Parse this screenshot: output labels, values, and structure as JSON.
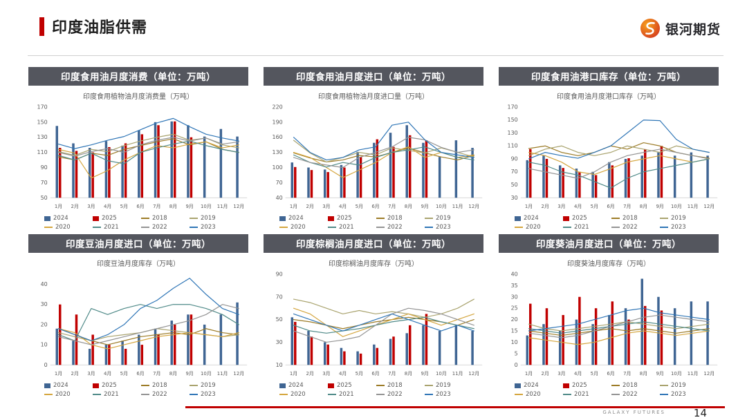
{
  "slide": {
    "title": "印度油脂供需",
    "logo_text": "银河期货",
    "footer_brand": "GALAXY FUTURES",
    "page_number": "14"
  },
  "colors": {
    "accent_red": "#c00000",
    "panel_header_bg": "#54565e"
  },
  "legend": {
    "items": [
      {
        "label": "2024",
        "type": "bar",
        "color": "#3f6593"
      },
      {
        "label": "2025",
        "type": "bar",
        "color": "#c00000"
      },
      {
        "label": "2018",
        "type": "line",
        "color": "#9c7b26"
      },
      {
        "label": "2019",
        "type": "line",
        "color": "#a9a36e"
      },
      {
        "label": "2020",
        "type": "line",
        "color": "#d4a53d"
      },
      {
        "label": "2021",
        "type": "line",
        "color": "#4f8a88"
      },
      {
        "label": "2022",
        "type": "line",
        "color": "#939393"
      },
      {
        "label": "2023",
        "type": "line",
        "color": "#2e75b6"
      }
    ]
  },
  "panels": [
    {
      "header": "印度食用油月度消费（单位：万吨）"
    },
    {
      "header": "印度食用油月度进口（单位：万吨）"
    },
    {
      "header": "印度食用油港口库存（单位：万吨）"
    },
    {
      "header": "印度豆油月度进口（单位：万吨）"
    },
    {
      "header": "印度棕榈油月度进口（单位：万吨）"
    },
    {
      "header": "印度葵油月度进口（单位：万吨）"
    }
  ],
  "chart_data": [
    {
      "type": "bar+line",
      "title": "印度食用植物油月度消费量（万吨）",
      "categories": [
        "1月",
        "2月",
        "3月",
        "4月",
        "5月",
        "6月",
        "7月",
        "8月",
        "9月",
        "10月",
        "11月",
        "12月"
      ],
      "ylim": [
        50,
        170
      ],
      "yticks": [
        50,
        70,
        90,
        110,
        130,
        150,
        170
      ],
      "series": [
        {
          "name": "2024",
          "type": "bar",
          "values": [
            145,
            122,
            116,
            125,
            119,
            139,
            150,
            151,
            146,
            131,
            141,
            131
          ]
        },
        {
          "name": "2025",
          "type": "bar",
          "values": [
            116,
            112,
            110,
            117,
            122,
            134,
            146,
            151,
            130,
            null,
            null,
            null
          ]
        },
        {
          "name": "2018",
          "type": "line",
          "values": [
            104,
            100,
            109,
            106,
            114,
            119,
            124,
            128,
            120,
            124,
            114,
            110
          ]
        },
        {
          "name": "2019",
          "type": "line",
          "values": [
            111,
            106,
            114,
            111,
            119,
            125,
            130,
            134,
            126,
            129,
            120,
            116
          ]
        },
        {
          "name": "2020",
          "type": "line",
          "values": [
            114,
            109,
            76,
            86,
            100,
            110,
            119,
            116,
            121,
            124,
            116,
            120
          ]
        },
        {
          "name": "2021",
          "type": "line",
          "values": [
            106,
            100,
            109,
            99,
            95,
            110,
            116,
            121,
            125,
            119,
            114,
            110
          ]
        },
        {
          "name": "2022",
          "type": "line",
          "values": [
            110,
            105,
            111,
            115,
            110,
            120,
            126,
            130,
            125,
            129,
            121,
            124
          ]
        },
        {
          "name": "2023",
          "type": "line",
          "values": [
            121,
            115,
            120,
            126,
            131,
            140,
            149,
            155,
            144,
            134,
            129,
            125
          ]
        }
      ]
    },
    {
      "type": "bar+line",
      "title": "印度食用植物油月度进口量（万吨）",
      "categories": [
        "1月",
        "2月",
        "3月",
        "4月",
        "5月",
        "6月",
        "7月",
        "8月",
        "9月",
        "10月",
        "11月",
        "12月"
      ],
      "ylim": [
        40,
        220
      ],
      "yticks": [
        40,
        70,
        100,
        130,
        160,
        190,
        220
      ],
      "series": [
        {
          "name": "2024",
          "type": "bar",
          "values": [
            110,
            100,
            96,
            105,
            131,
            149,
            169,
            184,
            149,
            121,
            154,
            139
          ]
        },
        {
          "name": "2025",
          "type": "bar",
          "values": [
            101,
            95,
            91,
            100,
            121,
            156,
            141,
            164,
            154,
            null,
            null,
            null
          ]
        },
        {
          "name": "2018",
          "type": "line",
          "values": [
            129,
            119,
            111,
            115,
            124,
            121,
            130,
            139,
            129,
            121,
            115,
            124
          ]
        },
        {
          "name": "2019",
          "type": "line",
          "values": [
            154,
            129,
            111,
            120,
            130,
            125,
            139,
            134,
            129,
            139,
            130,
            121
          ]
        },
        {
          "name": "2020",
          "type": "line",
          "values": [
            130,
            120,
            100,
            80,
            95,
            110,
            130,
            141,
            120,
            130,
            120,
            125
          ]
        },
        {
          "name": "2021",
          "type": "line",
          "values": [
            125,
            110,
            101,
            110,
            105,
            120,
            130,
            135,
            141,
            130,
            120,
            115
          ]
        },
        {
          "name": "2022",
          "type": "line",
          "values": [
            120,
            110,
            105,
            100,
            120,
            130,
            141,
            160,
            155,
            140,
            130,
            135
          ]
        },
        {
          "name": "2023",
          "type": "line",
          "values": [
            160,
            130,
            115,
            120,
            135,
            141,
            184,
            190,
            155,
            130,
            125,
            120
          ]
        }
      ]
    },
    {
      "type": "bar+line",
      "title": "印度食用油月度港口库存（万吨）",
      "categories": [
        "1月",
        "2月",
        "3月",
        "4月",
        "5月",
        "6月",
        "7月",
        "8月",
        "9月",
        "10月",
        "11月",
        "12月"
      ],
      "ylim": [
        30,
        170
      ],
      "yticks": [
        30,
        50,
        70,
        90,
        110,
        130,
        150,
        170
      ],
      "series": [
        {
          "name": "2024",
          "type": "bar",
          "values": [
            88,
            95,
            80,
            75,
            70,
            85,
            90,
            95,
            100,
            95,
            100,
            95
          ]
        },
        {
          "name": "2025",
          "type": "bar",
          "values": [
            105,
            90,
            76,
            70,
            65,
            80,
            91,
            105,
            110,
            null,
            null,
            null
          ]
        },
        {
          "name": "2018",
          "type": "line",
          "values": [
            106,
            110,
            100,
            95,
            100,
            110,
            105,
            115,
            110,
            100,
            95,
            91
          ]
        },
        {
          "name": "2019",
          "type": "line",
          "values": [
            95,
            105,
            110,
            100,
            95,
            100,
            110,
            105,
            100,
            110,
            105,
            100
          ]
        },
        {
          "name": "2020",
          "type": "line",
          "values": [
            100,
            95,
            85,
            70,
            66,
            75,
            85,
            90,
            95,
            90,
            85,
            90
          ]
        },
        {
          "name": "2021",
          "type": "line",
          "values": [
            85,
            80,
            70,
            65,
            55,
            45,
            60,
            70,
            75,
            80,
            85,
            90
          ]
        },
        {
          "name": "2022",
          "type": "line",
          "values": [
            75,
            70,
            65,
            60,
            70,
            85,
            95,
            100,
            105,
            100,
            95,
            90
          ]
        },
        {
          "name": "2023",
          "type": "line",
          "values": [
            90,
            100,
            95,
            91,
            100,
            110,
            130,
            150,
            149,
            120,
            105,
            100
          ]
        }
      ]
    },
    {
      "type": "bar+line",
      "title": "印度豆油月度库存（万吨）",
      "categories": [
        "1月",
        "2月",
        "3月",
        "4月",
        "5月",
        "6月",
        "7月",
        "8月",
        "9月",
        "10月",
        "11月",
        "12月"
      ],
      "ylim": [
        0,
        45
      ],
      "yticks": [
        0,
        10,
        20,
        30,
        40
      ],
      "series": [
        {
          "name": "2024",
          "type": "bar",
          "values": [
            18,
            12,
            8,
            10,
            12,
            15,
            18,
            22,
            25,
            20,
            25,
            31
          ]
        },
        {
          "name": "2025",
          "type": "bar",
          "values": [
            30,
            25,
            15,
            10,
            8,
            10,
            15,
            20,
            25,
            null,
            null,
            null
          ]
        },
        {
          "name": "2018",
          "type": "line",
          "values": [
            18,
            15,
            12,
            10,
            12,
            14,
            15,
            16,
            15,
            18,
            16,
            15
          ]
        },
        {
          "name": "2019",
          "type": "line",
          "values": [
            16,
            14,
            12,
            14,
            15,
            16,
            18,
            17,
            16,
            15,
            14,
            15
          ]
        },
        {
          "name": "2020",
          "type": "line",
          "values": [
            18,
            16,
            10,
            8,
            10,
            12,
            14,
            15,
            16,
            15,
            14,
            16
          ]
        },
        {
          "name": "2021",
          "type": "line",
          "values": [
            15,
            12,
            28,
            25,
            28,
            30,
            28,
            30,
            30,
            28,
            25,
            20
          ]
        },
        {
          "name": "2022",
          "type": "line",
          "values": [
            14,
            12,
            10,
            12,
            14,
            16,
            18,
            20,
            22,
            25,
            30,
            28
          ]
        },
        {
          "name": "2023",
          "type": "line",
          "values": [
            18,
            15,
            12,
            15,
            20,
            28,
            32,
            38,
            43,
            35,
            28,
            25
          ]
        }
      ]
    },
    {
      "type": "bar+line",
      "title": "印度棕榈油月度库存（万吨）",
      "categories": [
        "1月",
        "2月",
        "3月",
        "4月",
        "5月",
        "6月",
        "7月",
        "8月",
        "9月",
        "10月",
        "11月",
        "12月"
      ],
      "ylim": [
        10,
        90
      ],
      "yticks": [
        10,
        30,
        50,
        70,
        90
      ],
      "series": [
        {
          "name": "2024",
          "type": "bar",
          "values": [
            52,
            40,
            30,
            25,
            22,
            28,
            33,
            38,
            45,
            40,
            45,
            40
          ]
        },
        {
          "name": "2025",
          "type": "bar",
          "values": [
            48,
            35,
            28,
            22,
            20,
            25,
            35,
            45,
            55,
            null,
            null,
            null
          ]
        },
        {
          "name": "2018",
          "type": "line",
          "values": [
            50,
            48,
            45,
            42,
            45,
            48,
            50,
            52,
            50,
            48,
            45,
            50
          ]
        },
        {
          "name": "2019",
          "type": "line",
          "values": [
            68,
            65,
            60,
            55,
            58,
            55,
            57,
            55,
            52,
            55,
            60,
            68
          ]
        },
        {
          "name": "2020",
          "type": "line",
          "values": [
            60,
            55,
            45,
            35,
            40,
            45,
            50,
            55,
            50,
            45,
            50,
            55
          ]
        },
        {
          "name": "2021",
          "type": "line",
          "values": [
            45,
            40,
            38,
            40,
            42,
            45,
            48,
            50,
            52,
            48,
            45,
            42
          ]
        },
        {
          "name": "2022",
          "type": "line",
          "values": [
            40,
            35,
            30,
            32,
            35,
            45,
            55,
            60,
            58,
            55,
            50,
            45
          ]
        },
        {
          "name": "2023",
          "type": "line",
          "values": [
            55,
            50,
            45,
            40,
            45,
            50,
            55,
            50,
            45,
            40,
            45,
            40
          ]
        }
      ]
    },
    {
      "type": "bar+line",
      "title": "印度葵油月度库存（万吨）",
      "categories": [
        "1月",
        "2月",
        "3月",
        "4月",
        "5月",
        "6月",
        "7月",
        "8月",
        "9月",
        "10月",
        "11月",
        "12月"
      ],
      "ylim": [
        0,
        40
      ],
      "yticks": [
        0,
        5,
        10,
        15,
        20,
        25,
        30,
        35,
        40
      ],
      "series": [
        {
          "name": "2024",
          "type": "bar",
          "values": [
            13,
            18,
            15,
            20,
            18,
            22,
            25,
            38,
            30,
            25,
            28,
            28
          ]
        },
        {
          "name": "2025",
          "type": "bar",
          "values": [
            27,
            25,
            22,
            30,
            25,
            28,
            20,
            26,
            24,
            null,
            null,
            null
          ]
        },
        {
          "name": "2018",
          "type": "line",
          "values": [
            15,
            14,
            13,
            14,
            15,
            16,
            15,
            16,
            15,
            14,
            15,
            16
          ]
        },
        {
          "name": "2019",
          "type": "line",
          "values": [
            18,
            16,
            15,
            16,
            17,
            18,
            19,
            18,
            17,
            16,
            17,
            18
          ]
        },
        {
          "name": "2020",
          "type": "line",
          "values": [
            12,
            11,
            10,
            9,
            10,
            12,
            14,
            15,
            14,
            13,
            14,
            15
          ]
        },
        {
          "name": "2021",
          "type": "line",
          "values": [
            16,
            15,
            14,
            15,
            16,
            17,
            18,
            19,
            18,
            17,
            16,
            15
          ]
        },
        {
          "name": "2022",
          "type": "line",
          "values": [
            14,
            13,
            12,
            13,
            15,
            17,
            19,
            21,
            22,
            21,
            20,
            19
          ]
        },
        {
          "name": "2023",
          "type": "line",
          "values": [
            15,
            16,
            17,
            18,
            20,
            22,
            24,
            25,
            23,
            22,
            21,
            20
          ]
        }
      ]
    }
  ]
}
